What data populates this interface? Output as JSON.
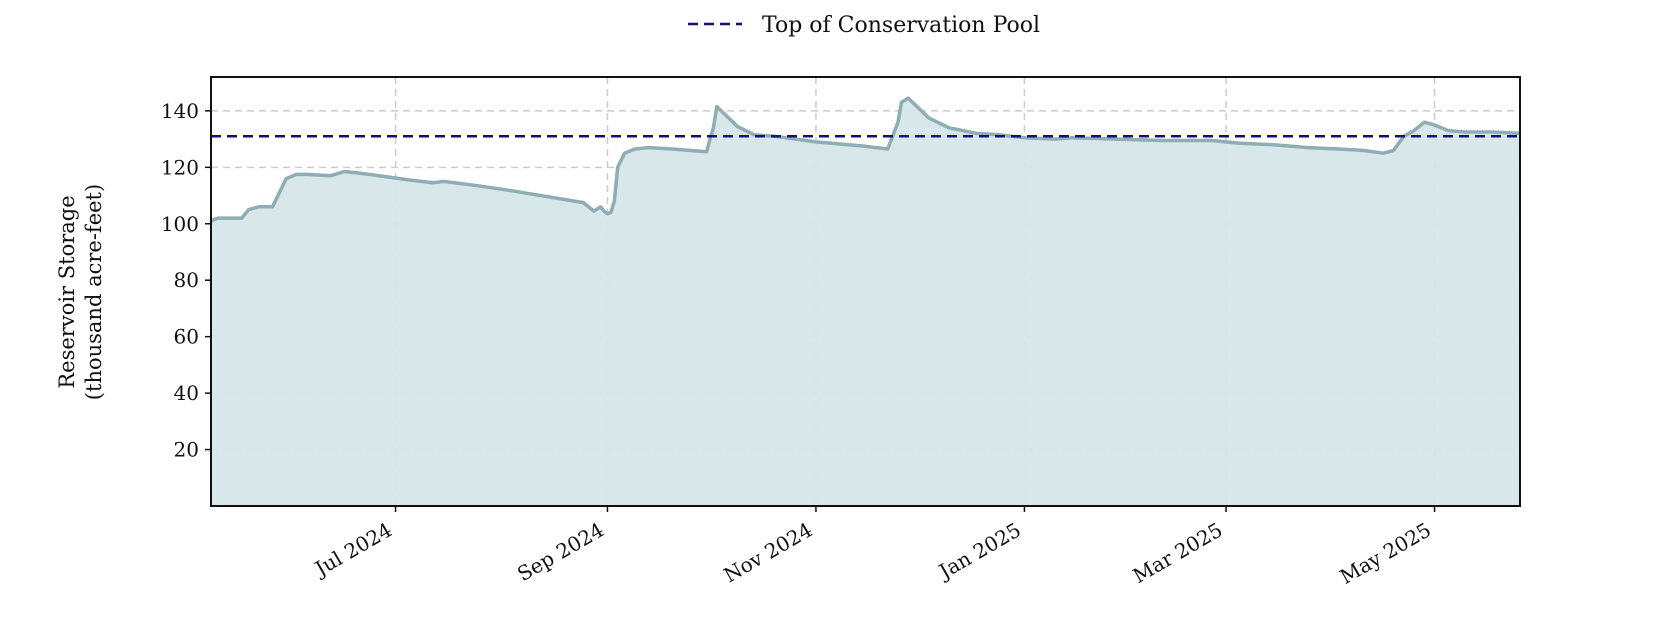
{
  "chart_data": {
    "type": "area",
    "title": "",
    "xlabel": "",
    "ylabel_lines": [
      "Reservoir Storage",
      "(thousand acre-feet)"
    ],
    "x_range": [
      "2024-05-08",
      "2025-05-26"
    ],
    "ylim": [
      0,
      152
    ],
    "x_ticks": [
      {
        "date": "2024-07-01",
        "label": "Jul 2024"
      },
      {
        "date": "2024-09-01",
        "label": "Sep 2024"
      },
      {
        "date": "2024-11-01",
        "label": "Nov 2024"
      },
      {
        "date": "2025-01-01",
        "label": "Jan 2025"
      },
      {
        "date": "2025-03-01",
        "label": "Mar 2025"
      },
      {
        "date": "2025-05-01",
        "label": "May 2025"
      }
    ],
    "y_ticks": [
      20,
      40,
      60,
      80,
      100,
      120,
      140
    ],
    "grid": true,
    "legend": {
      "placement": "top-center",
      "entries": [
        "Top of Conservation Pool"
      ]
    },
    "colors": {
      "fill": "#d6e6e8",
      "line": "#8eadb4",
      "reference": "#10107a",
      "grid": "#cccccc"
    },
    "reference_line": {
      "name": "Top of Conservation Pool",
      "value": 131,
      "style": "dashed"
    },
    "series": [
      {
        "points": [
          [
            "2024-05-08",
            101
          ],
          [
            "2024-05-10",
            102
          ],
          [
            "2024-05-17",
            102
          ],
          [
            "2024-05-19",
            105
          ],
          [
            "2024-05-22",
            106
          ],
          [
            "2024-05-26",
            106
          ],
          [
            "2024-05-30",
            116
          ],
          [
            "2024-06-02",
            117.5
          ],
          [
            "2024-06-05",
            117.5
          ],
          [
            "2024-06-12",
            117
          ],
          [
            "2024-06-16",
            118.5
          ],
          [
            "2024-06-20",
            118
          ],
          [
            "2024-06-25",
            117.2
          ],
          [
            "2024-07-05",
            115.5
          ],
          [
            "2024-07-12",
            114.5
          ],
          [
            "2024-07-15",
            115
          ],
          [
            "2024-07-25",
            113.5
          ],
          [
            "2024-08-05",
            111.5
          ],
          [
            "2024-08-15",
            109.5
          ],
          [
            "2024-08-25",
            107.5
          ],
          [
            "2024-08-30",
            106
          ],
          [
            "2024-08-31",
            104.5
          ],
          [
            "2024-08-28",
            104.5
          ],
          [
            "2024-09-01",
            103.5
          ],
          [
            "2024-09-02",
            104
          ],
          [
            "2024-09-03",
            108
          ],
          [
            "2024-09-04",
            120
          ],
          [
            "2024-09-06",
            125
          ],
          [
            "2024-09-09",
            126.5
          ],
          [
            "2024-09-13",
            127
          ],
          [
            "2024-09-20",
            126.5
          ],
          [
            "2024-09-30",
            125.5
          ],
          [
            "2024-10-01",
            130
          ],
          [
            "2024-10-02",
            134
          ],
          [
            "2024-10-03",
            141.5
          ],
          [
            "2024-10-06",
            138
          ],
          [
            "2024-10-09",
            134.5
          ],
          [
            "2024-10-14",
            131.5
          ],
          [
            "2024-10-20",
            131
          ],
          [
            "2024-11-01",
            129
          ],
          [
            "2024-11-15",
            127.5
          ],
          [
            "2024-11-22",
            126.5
          ],
          [
            "2024-11-25",
            136
          ],
          [
            "2024-11-26",
            143
          ],
          [
            "2024-11-28",
            144.5
          ],
          [
            "2024-12-01",
            141
          ],
          [
            "2024-12-04",
            137.5
          ],
          [
            "2024-12-10",
            134
          ],
          [
            "2024-12-18",
            132
          ],
          [
            "2024-12-25",
            131.5
          ],
          [
            "2025-01-01",
            130.5
          ],
          [
            "2025-01-10",
            130
          ],
          [
            "2025-01-15",
            130.5
          ],
          [
            "2025-01-28",
            130
          ],
          [
            "2025-02-10",
            129.5
          ],
          [
            "2025-02-25",
            129.5
          ],
          [
            "2025-03-05",
            128.5
          ],
          [
            "2025-03-15",
            128
          ],
          [
            "2025-03-25",
            127
          ],
          [
            "2025-04-03",
            126.5
          ],
          [
            "2025-04-10",
            126
          ],
          [
            "2025-04-16",
            125
          ],
          [
            "2025-04-19",
            126
          ],
          [
            "2025-04-22",
            131
          ],
          [
            "2025-04-25",
            133
          ],
          [
            "2025-04-28",
            136
          ],
          [
            "2025-05-01",
            135
          ],
          [
            "2025-05-05",
            133
          ],
          [
            "2025-05-10",
            132.5
          ],
          [
            "2025-05-18",
            132.5
          ],
          [
            "2025-05-26",
            132
          ]
        ]
      }
    ]
  }
}
